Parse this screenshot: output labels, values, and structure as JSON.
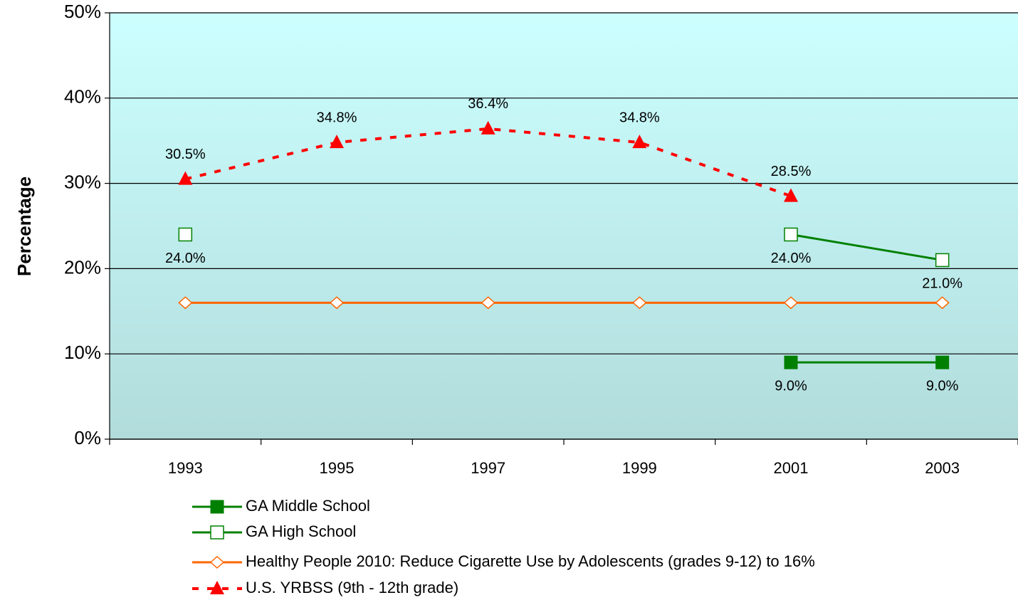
{
  "chart_data": {
    "type": "line",
    "y_label": "Percentage",
    "categories": [
      "1993",
      "1995",
      "1997",
      "1999",
      "2001",
      "2003"
    ],
    "ylim": [
      0,
      50
    ],
    "yticks": [
      {
        "value": 0,
        "label": "0%"
      },
      {
        "value": 10,
        "label": "10%"
      },
      {
        "value": 20,
        "label": "20%"
      },
      {
        "value": 30,
        "label": "30%"
      },
      {
        "value": 40,
        "label": "40%"
      },
      {
        "value": 50,
        "label": "50%"
      }
    ],
    "grid": true,
    "series": [
      {
        "name": "GA Middle School",
        "color": "#008000",
        "marker": "square-filled",
        "dashed": false,
        "label_position": "below",
        "values": [
          null,
          null,
          null,
          null,
          9,
          9
        ],
        "value_labels": [
          null,
          null,
          null,
          null,
          "9.0%",
          "9.0%"
        ]
      },
      {
        "name": "GA High School",
        "color": "#008000",
        "marker": "square-open",
        "dashed": false,
        "label_position": "below",
        "values": [
          24,
          null,
          null,
          null,
          24,
          21
        ],
        "value_labels": [
          "24.0%",
          null,
          null,
          null,
          "24.0%",
          "21.0%"
        ]
      },
      {
        "name": "Healthy People 2010: Reduce Cigarette Use by Adolescents (grades 9-12) to 16%",
        "color": "#ff6600",
        "marker": "diamond-open",
        "dashed": false,
        "values": [
          16,
          16,
          16,
          16,
          16,
          16
        ]
      },
      {
        "name": "U.S. YRBSS (9th - 12th grade)",
        "color": "#ff0000",
        "marker": "triangle",
        "dashed": true,
        "label_position": "above",
        "values": [
          30.5,
          34.8,
          36.4,
          34.8,
          28.5,
          null
        ],
        "value_labels": [
          "30.5%",
          "34.8%",
          "36.4%",
          "34.8%",
          "28.5%",
          null
        ]
      }
    ]
  }
}
